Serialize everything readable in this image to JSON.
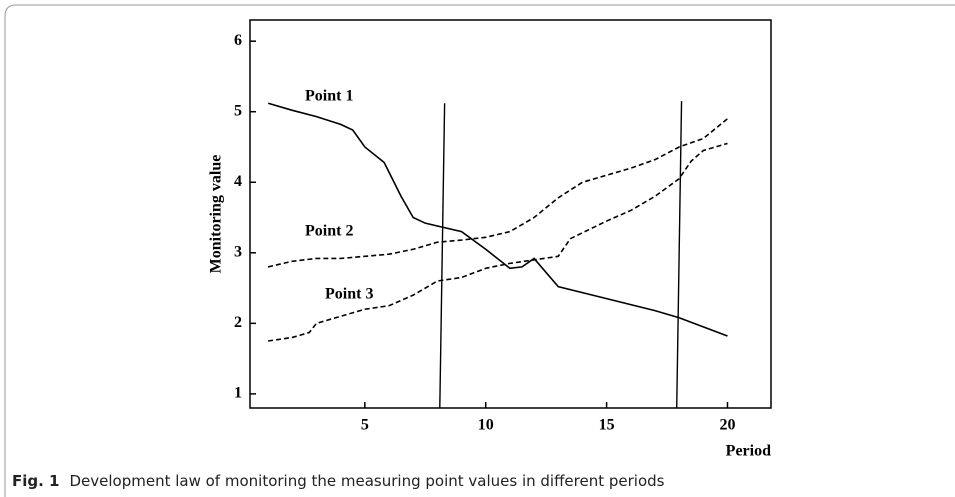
{
  "chart_data": {
    "type": "line",
    "ylabel": "Monitoring value",
    "xlabel": "Period",
    "caption_label": "Fig. 1",
    "caption": "Development law of monitoring the measuring point values in different periods",
    "xlim": [
      0.25,
      21.8
    ],
    "ylim": [
      0.8,
      6.3
    ],
    "xticks": [
      5,
      10,
      15,
      20
    ],
    "yticks": [
      1,
      2,
      3,
      4,
      5,
      6
    ],
    "series": [
      {
        "name": "Point 1",
        "color": "#000000",
        "dashed": false,
        "x": [
          1,
          2,
          3,
          4,
          4.5,
          5,
          5.8,
          6.5,
          7,
          7.5,
          8,
          9,
          10,
          11,
          11.5,
          12,
          13,
          15,
          17,
          18,
          20
        ],
        "values": [
          5.12,
          5.02,
          4.93,
          4.82,
          4.74,
          4.5,
          4.28,
          3.8,
          3.5,
          3.42,
          3.38,
          3.3,
          3.05,
          2.78,
          2.8,
          2.92,
          2.52,
          2.35,
          2.18,
          2.08,
          1.82
        ]
      },
      {
        "name": "Point 2",
        "color": "#000000",
        "dashed": true,
        "x": [
          1,
          2,
          3,
          4,
          5,
          6,
          7,
          8,
          9,
          10,
          11,
          12,
          13,
          14,
          15,
          16,
          17,
          18,
          19,
          20
        ],
        "values": [
          2.8,
          2.88,
          2.92,
          2.92,
          2.95,
          2.98,
          3.05,
          3.15,
          3.18,
          3.22,
          3.3,
          3.5,
          3.78,
          4.0,
          4.1,
          4.2,
          4.32,
          4.5,
          4.62,
          4.9
        ]
      },
      {
        "name": "Point 3",
        "color": "#000000",
        "dashed": true,
        "x": [
          1,
          2,
          2.7,
          3,
          4,
          5,
          6,
          7,
          8,
          9,
          10,
          11,
          12,
          13,
          13.5,
          15,
          16,
          17,
          18,
          18.5,
          19,
          20
        ],
        "values": [
          1.75,
          1.8,
          1.87,
          2.0,
          2.1,
          2.2,
          2.25,
          2.4,
          2.6,
          2.65,
          2.78,
          2.85,
          2.9,
          2.95,
          3.2,
          3.45,
          3.6,
          3.8,
          4.05,
          4.3,
          4.45,
          4.55
        ]
      }
    ],
    "vlines": [
      {
        "x": [
          8.3,
          8.1
        ],
        "y": [
          5.12,
          0.8
        ]
      },
      {
        "x": [
          18.1,
          17.9
        ],
        "y": [
          5.15,
          0.8
        ]
      }
    ]
  }
}
